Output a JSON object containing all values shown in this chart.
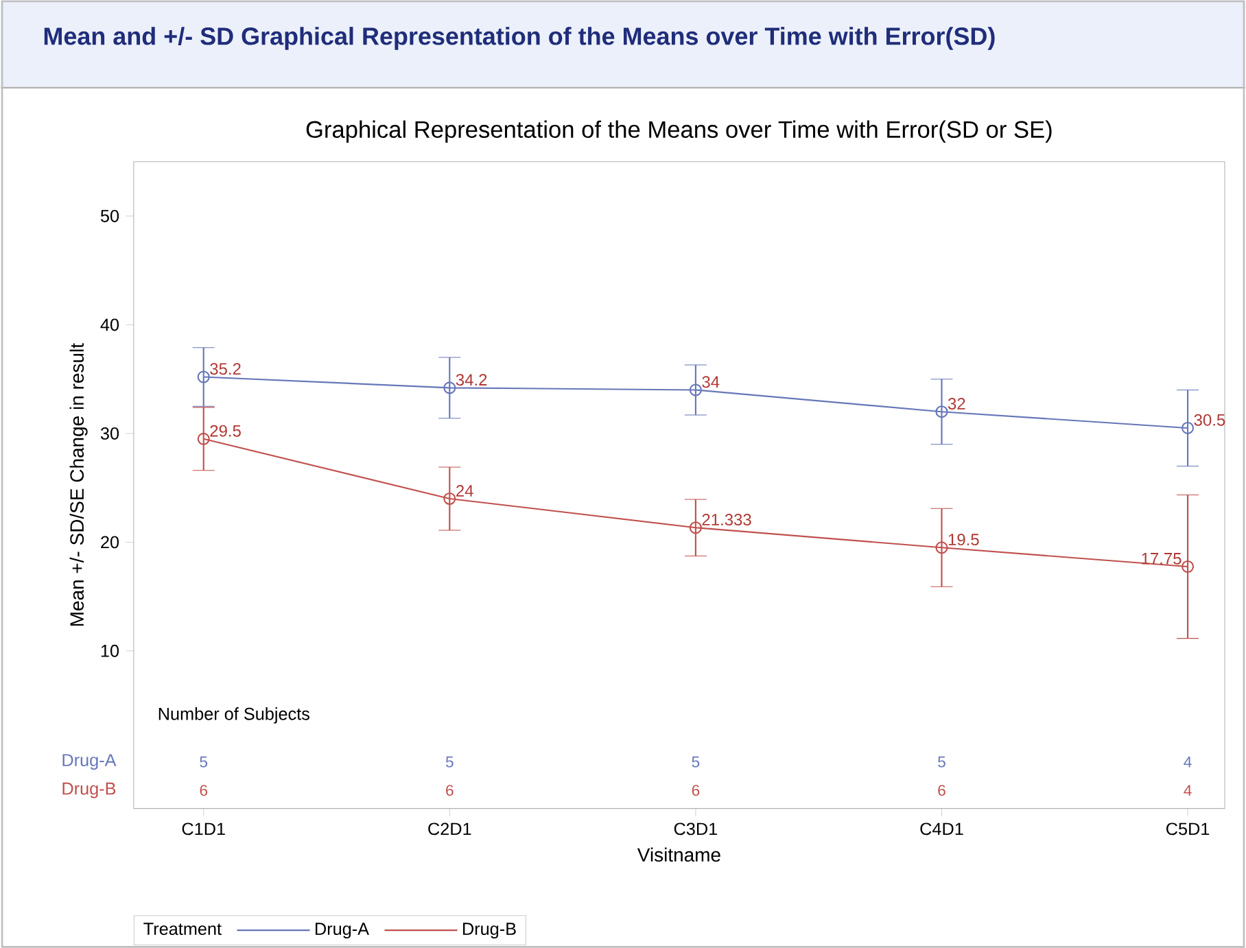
{
  "chart_data": {
    "type": "line",
    "title": "Mean and +/- SD Graphical Representation of the Means over Time with Error(SD)",
    "subtitle": "Graphical Representation of the  Means over Time with Error(SD or SE)",
    "xlabel": "Visitname",
    "ylabel": "Mean +/- SD/SE Change in result",
    "legend_title": "Treatment",
    "categories": [
      "C1D1",
      "C2D1",
      "C3D1",
      "C4D1",
      "C5D1"
    ],
    "series": [
      {
        "name": "Drug-A",
        "color": "#6676b8",
        "values": [
          35.2,
          34.2,
          34,
          32,
          30.5
        ],
        "errors": [
          2.7,
          2.8,
          2.3,
          3.0,
          3.5
        ]
      },
      {
        "name": "Drug-B",
        "color": "#c0504d",
        "values": [
          29.5,
          24,
          21.333,
          19.5,
          17.75
        ],
        "errors": [
          2.9,
          2.9,
          2.6,
          3.6,
          6.6
        ]
      }
    ],
    "ylim": [
      -4.5,
      55
    ],
    "yticks": [
      10,
      20,
      30,
      40,
      50
    ],
    "data_labels": true,
    "marker": "circle",
    "line_style": "solid",
    "legend": "bottom",
    "grid": false,
    "annotations": [
      "Number of Subjects",
      "5",
      "5",
      "5",
      "5",
      "4",
      "6",
      "6",
      "6",
      "6",
      "4"
    ]
  }
}
